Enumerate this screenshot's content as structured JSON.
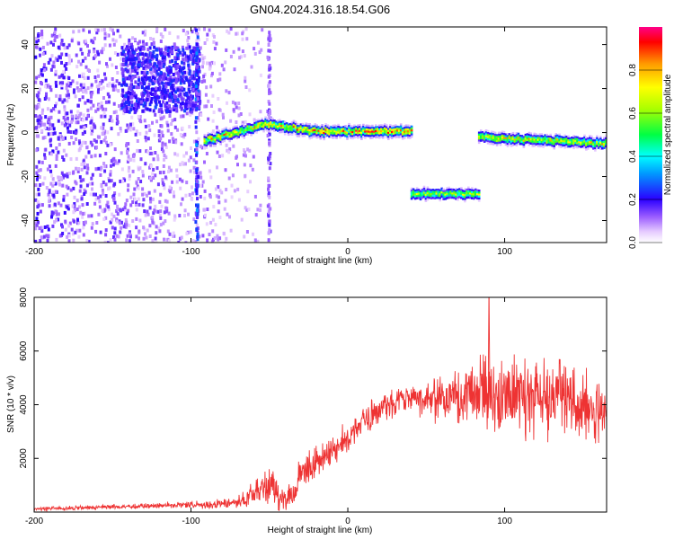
{
  "figure": {
    "title": "GN04.2024.316.18.54.G06"
  },
  "chart_data": [
    {
      "type": "heatmap",
      "title": "GN04.2024.316.18.54.G06",
      "xlabel": "Height of straight line (km)",
      "ylabel": "Frequency (Hz)",
      "xlim": [
        -200,
        165
      ],
      "ylim": [
        -50,
        48
      ],
      "x_ticks": [
        -200,
        -100,
        0,
        100
      ],
      "y_ticks": [
        -40,
        -20,
        0,
        20,
        40
      ],
      "colorbar": {
        "label": "Normalized spectral amplitude",
        "range": [
          0,
          1
        ],
        "ticks": [
          0.0,
          0.2,
          0.4,
          0.6,
          0.8
        ]
      },
      "noise_region": {
        "x_range": [
          -200,
          -55
        ],
        "freq_range": [
          -50,
          48
        ]
      },
      "noise_cluster": {
        "x_range": [
          -145,
          -95
        ],
        "freq_range": [
          10,
          40
        ]
      },
      "tracks": [
        {
          "x_range": [
            -92,
            -52
          ],
          "freq_start": -4,
          "freq_end": 4,
          "peak_amplitude": 0.9
        },
        {
          "x_range": [
            -52,
            -25
          ],
          "freq_start": 4,
          "freq_end": 1,
          "peak_amplitude": 0.95
        },
        {
          "x_range": [
            -25,
            40
          ],
          "freq_start": 0.5,
          "freq_end": 0.5,
          "peak_amplitude": 1.0
        },
        {
          "x_range": [
            40,
            83
          ],
          "freq_start": -28,
          "freq_end": -28,
          "peak_amplitude": 0.75
        },
        {
          "x_range": [
            83,
            165
          ],
          "freq_start": -2,
          "freq_end": -5,
          "peak_amplitude": 0.85
        }
      ]
    },
    {
      "type": "line",
      "xlabel": "Height of straight line (km)",
      "ylabel": "SNR (10 * v/v)",
      "xlim": [
        -200,
        165
      ],
      "ylim": [
        0,
        8000
      ],
      "x_ticks": [
        -200,
        -100,
        0,
        100
      ],
      "y_ticks": [
        2000,
        4000,
        6000,
        8000
      ],
      "color": "#ee3333",
      "series": [
        {
          "x": [
            -200,
            -180,
            -160,
            -140,
            -120,
            -100,
            -80,
            -70,
            -60,
            -50,
            -45,
            -40,
            -35,
            -30,
            -20,
            -10,
            0,
            10,
            20,
            30,
            40,
            50,
            60,
            70,
            80,
            90,
            100,
            110,
            120,
            130,
            140,
            150,
            160,
            165
          ],
          "y": [
            120,
            140,
            170,
            200,
            230,
            260,
            300,
            350,
            700,
            1000,
            700,
            500,
            600,
            1400,
            1900,
            2300,
            2800,
            3300,
            3800,
            4100,
            4300,
            4200,
            4300,
            4300,
            4500,
            4400,
            4200,
            4300,
            4300,
            4200,
            4100,
            4000,
            3800,
            3600
          ],
          "spread": [
            60,
            70,
            80,
            90,
            100,
            120,
            150,
            200,
            400,
            600,
            600,
            500,
            500,
            500,
            500,
            500,
            500,
            500,
            500,
            500,
            500,
            600,
            700,
            900,
            1300,
            1500,
            1300,
            1200,
            1200,
            1200,
            1100,
            1000,
            900,
            800
          ]
        }
      ],
      "max_peak": {
        "x": 90,
        "y": 8000
      }
    }
  ]
}
